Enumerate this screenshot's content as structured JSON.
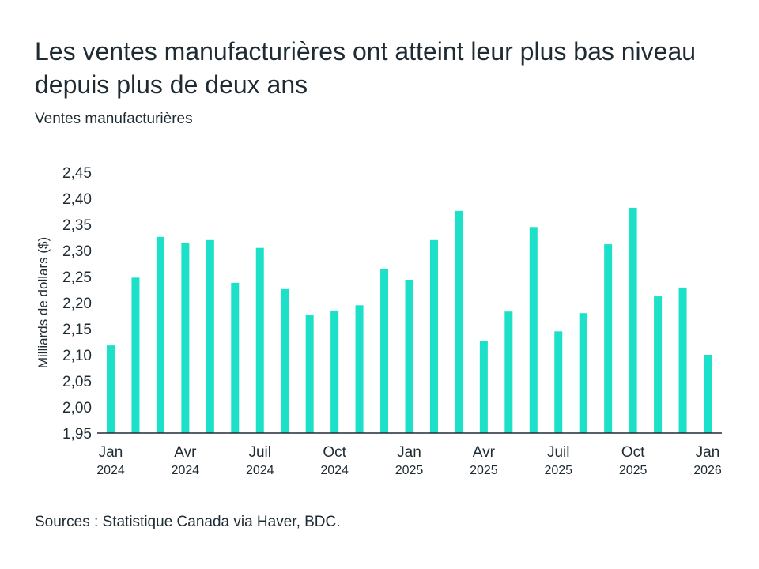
{
  "header": {
    "title": "Les ventes manufacturières ont atteint leur plus bas niveau depuis plus de deux ans",
    "subtitle": "Ventes manufacturières"
  },
  "footer": {
    "source": "Sources : Statistique Canada via Haver, BDC."
  },
  "colors": {
    "bar": "#1de0c8",
    "axis": "#1e2b33",
    "text": "#1e2b33"
  },
  "chart_data": {
    "type": "bar",
    "title": "Les ventes manufacturières ont atteint leur plus bas niveau depuis plus de deux ans",
    "subtitle": "Ventes manufacturières",
    "xlabel": "",
    "ylabel": "Milliards de dollars ($)",
    "ylim": [
      1.95,
      2.45
    ],
    "grid": false,
    "categories": [
      "2024-01",
      "2024-02",
      "2024-03",
      "2024-04",
      "2024-05",
      "2024-06",
      "2024-07",
      "2024-08",
      "2024-09",
      "2024-10",
      "2024-11",
      "2024-12",
      "2025-01",
      "2025-02",
      "2025-03",
      "2025-04",
      "2025-05",
      "2025-06",
      "2025-07",
      "2025-08",
      "2025-09",
      "2025-10",
      "2025-11",
      "2025-12",
      "2026-01"
    ],
    "values": [
      2.118,
      2.248,
      2.326,
      2.315,
      2.32,
      2.238,
      2.305,
      2.226,
      2.177,
      2.185,
      2.195,
      2.264,
      2.244,
      2.32,
      2.376,
      2.127,
      2.183,
      2.345,
      2.145,
      2.18,
      2.312,
      2.382,
      2.212,
      2.229,
      2.1
    ],
    "y_ticks": [
      {
        "value": 1.95,
        "label": "1,95"
      },
      {
        "value": 2.0,
        "label": "2,00"
      },
      {
        "value": 2.05,
        "label": "2,05"
      },
      {
        "value": 2.1,
        "label": "2,10"
      },
      {
        "value": 2.15,
        "label": "2,15"
      },
      {
        "value": 2.2,
        "label": "2,20"
      },
      {
        "value": 2.25,
        "label": "2,25"
      },
      {
        "value": 2.3,
        "label": "2,30"
      },
      {
        "value": 2.35,
        "label": "2,35"
      },
      {
        "value": 2.4,
        "label": "2,40"
      },
      {
        "value": 2.45,
        "label": "2,45"
      }
    ],
    "x_ticks": [
      {
        "index": 0,
        "month": "Jan",
        "year": "2024"
      },
      {
        "index": 3,
        "month": "Avr",
        "year": "2024"
      },
      {
        "index": 6,
        "month": "Juil",
        "year": "2024"
      },
      {
        "index": 9,
        "month": "Oct",
        "year": "2024"
      },
      {
        "index": 12,
        "month": "Jan",
        "year": "2025"
      },
      {
        "index": 15,
        "month": "Avr",
        "year": "2025"
      },
      {
        "index": 18,
        "month": "Juil",
        "year": "2025"
      },
      {
        "index": 21,
        "month": "Oct",
        "year": "2025"
      },
      {
        "index": 24,
        "month": "Jan",
        "year": "2026"
      }
    ]
  }
}
